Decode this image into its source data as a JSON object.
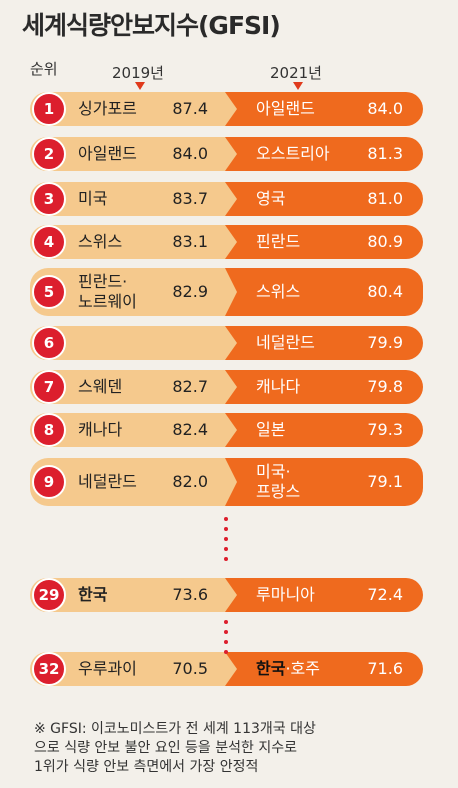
{
  "title": "세계식량안보지수(GFSI)",
  "headers": {
    "rank": "순위",
    "year1": "2019년",
    "year2": "2021년"
  },
  "colors": {
    "light": "#f5c98d",
    "dark": "#ef6a1e",
    "badge": "#dc1e2d"
  },
  "note": {
    "line1": "※ GFSI: 이코노미스트가 전 세계 113개국 대상",
    "line2": "으로 식량 안보 불안 요인 등을 분석한 지수로",
    "line3": "1위가 식량 안보 측면에서 가장 안정적"
  },
  "chart_data": {
    "type": "table",
    "title": "세계식량안보지수(GFSI)",
    "columns": [
      "순위",
      "2019년",
      "2021년"
    ],
    "rows": [
      {
        "rank": "1",
        "c2019": "싱가포르",
        "s2019": "87.4",
        "c2021": "아일랜드",
        "s2021": "84.0"
      },
      {
        "rank": "2",
        "c2019": "아일랜드",
        "s2019": "84.0",
        "c2021": "오스트리아",
        "s2021": "81.3"
      },
      {
        "rank": "3",
        "c2019": "미국",
        "s2019": "83.7",
        "c2021": "영국",
        "s2021": "81.0"
      },
      {
        "rank": "4",
        "c2019": "스위스",
        "s2019": "83.1",
        "c2021": "핀란드",
        "s2021": "80.9"
      },
      {
        "rank": "5",
        "c2019": "핀란드·",
        "c2019b": "노르웨이",
        "s2019": "82.9",
        "c2021": "스위스",
        "s2021": "80.4"
      },
      {
        "rank": "6",
        "c2019": "",
        "s2019": "",
        "c2021": "네덜란드",
        "s2021": "79.9"
      },
      {
        "rank": "7",
        "c2019": "스웨덴",
        "s2019": "82.7",
        "c2021": "캐나다",
        "s2021": "79.8"
      },
      {
        "rank": "8",
        "c2019": "캐나다",
        "s2019": "82.4",
        "c2021": "일본",
        "s2021": "79.3"
      },
      {
        "rank": "9",
        "c2019": "네덜란드",
        "s2019": "82.0",
        "c2021": "미국·",
        "c2021b": "프랑스",
        "s2021": "79.1"
      },
      {
        "rank": "29",
        "c2019": "한국",
        "s2019": "73.6",
        "c2021": "루마니아",
        "s2021": "72.4"
      },
      {
        "rank": "32",
        "c2019": "우루과이",
        "s2019": "70.5",
        "c2021": "한국",
        "c2021b": "·호주",
        "s2021": "71.6"
      }
    ]
  }
}
